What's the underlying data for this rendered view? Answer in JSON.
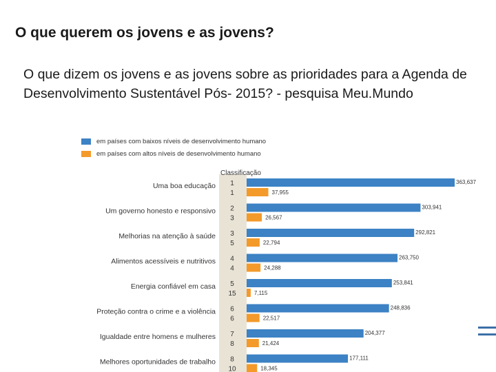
{
  "slide": {
    "title": "O que querem os jovens e as jovens?",
    "subtitle": "O que dizem os jovens e as jovens sobre as prioridades para a Agenda de Desenvolvimento Sustentável Pós- 2015? - pesquisa Meu.Mundo"
  },
  "chart_data": {
    "type": "bar",
    "orientation": "horizontal",
    "rank_header": "Classificação",
    "categories": [
      "Uma boa educação",
      "Um governo honesto e responsivo",
      "Melhorias na atenção à saúde",
      "Alimentos acessíveis e nutritivos",
      "Energia confiável em casa",
      "Proteção contra o crime e a violência",
      "Igualdade entre homens e mulheres",
      "Melhores oportunidades de trabalho"
    ],
    "series": [
      {
        "name": "em países com baixos níveis de desenvolvimento humano",
        "color": "#3c82c4",
        "values": [
          363637,
          303941,
          292821,
          263750,
          253841,
          248836,
          204377,
          177111
        ],
        "labels": [
          "363,637",
          "303,941",
          "292,821",
          "263,750",
          "253,841",
          "248,836",
          "204,377",
          "177,111"
        ],
        "ranks": [
          "1",
          "2",
          "3",
          "4",
          "5",
          "6",
          "7",
          "8"
        ]
      },
      {
        "name": "em países com altos níveis de desenvolvimento humano",
        "color": "#f39a2b",
        "values": [
          37955,
          26567,
          22794,
          24288,
          7115,
          22517,
          21424,
          18345
        ],
        "labels": [
          "37,955",
          "26,567",
          "22,794",
          "24,288",
          "7,115",
          "22,517",
          "21,424",
          "18,345"
        ],
        "ranks": [
          "1",
          "3",
          "5",
          "4",
          "15",
          "6",
          "8",
          "10"
        ]
      }
    ],
    "xlim": [
      0,
      363637
    ]
  },
  "colors": {
    "rank_column": "#e9e3d6",
    "accent": "#3c6fa8"
  }
}
